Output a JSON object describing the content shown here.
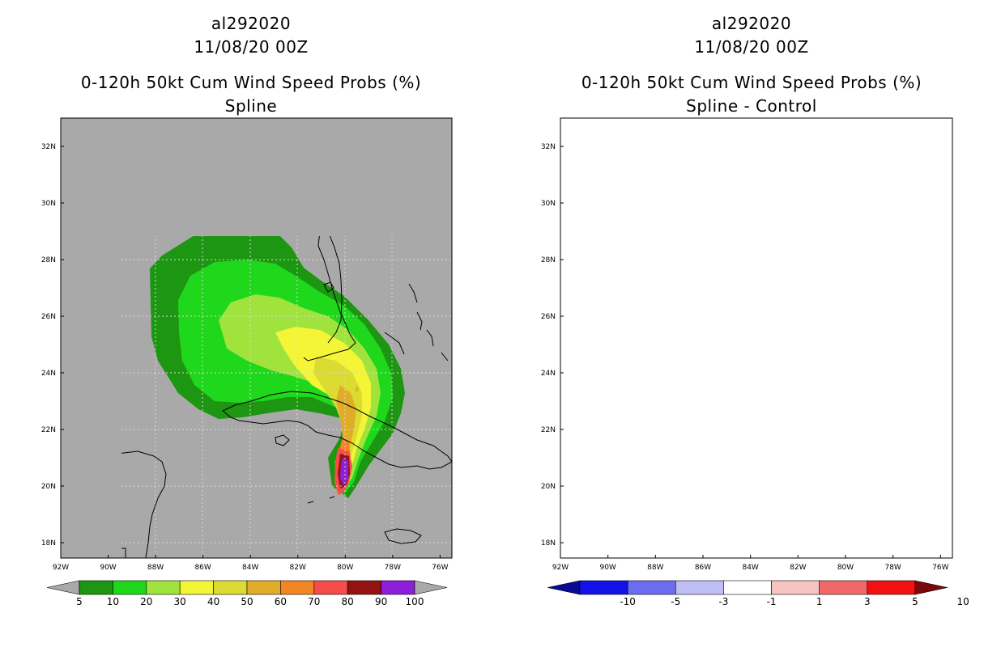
{
  "left_panel": {
    "storm_id": "al292020",
    "datetime": "11/08/20 00Z",
    "product": "0-120h 50kt Cum Wind Speed Probs (%)",
    "subtitle": "Spline",
    "background_color": "#a9a9a9",
    "lat_labels": [
      "32N",
      "30N",
      "28N",
      "26N",
      "24N",
      "22N",
      "20N",
      "18N"
    ],
    "lon_labels": [
      "92W",
      "90W",
      "88W",
      "86W",
      "84W",
      "82W",
      "80W",
      "78W",
      "76W"
    ],
    "colorbar": {
      "labels": [
        "5",
        "10",
        "20",
        "30",
        "40",
        "50",
        "60",
        "70",
        "80",
        "90",
        "100"
      ],
      "colors": [
        "#1d9611",
        "#1fd81c",
        "#a0e33c",
        "#f3f536",
        "#dcdb31",
        "#e1ad29",
        "#f28622",
        "#f54c4c",
        "#941212",
        "#8d1edb"
      ]
    }
  },
  "right_panel": {
    "storm_id": "al292020",
    "datetime": "11/08/20 00Z",
    "product": "0-120h 50kt Cum Wind Speed Probs (%)",
    "subtitle": "Spline - Control",
    "background_color": "#ffffff",
    "lat_labels": [
      "32N",
      "30N",
      "28N",
      "26N",
      "24N",
      "22N",
      "20N",
      "18N"
    ],
    "lon_labels": [
      "92W",
      "90W",
      "88W",
      "86W",
      "84W",
      "82W",
      "80W",
      "78W",
      "76W"
    ],
    "colorbar": {
      "labels": [
        "-10",
        "-5",
        "-3",
        "-1",
        "1",
        "3",
        "5",
        "10"
      ],
      "colors": [
        "#0a0a92",
        "#1212e8",
        "#6c6cf0",
        "#bfbff5",
        "#ffffff",
        "#f8c3c3",
        "#f06868",
        "#f21010",
        "#7a0a0a"
      ]
    }
  }
}
